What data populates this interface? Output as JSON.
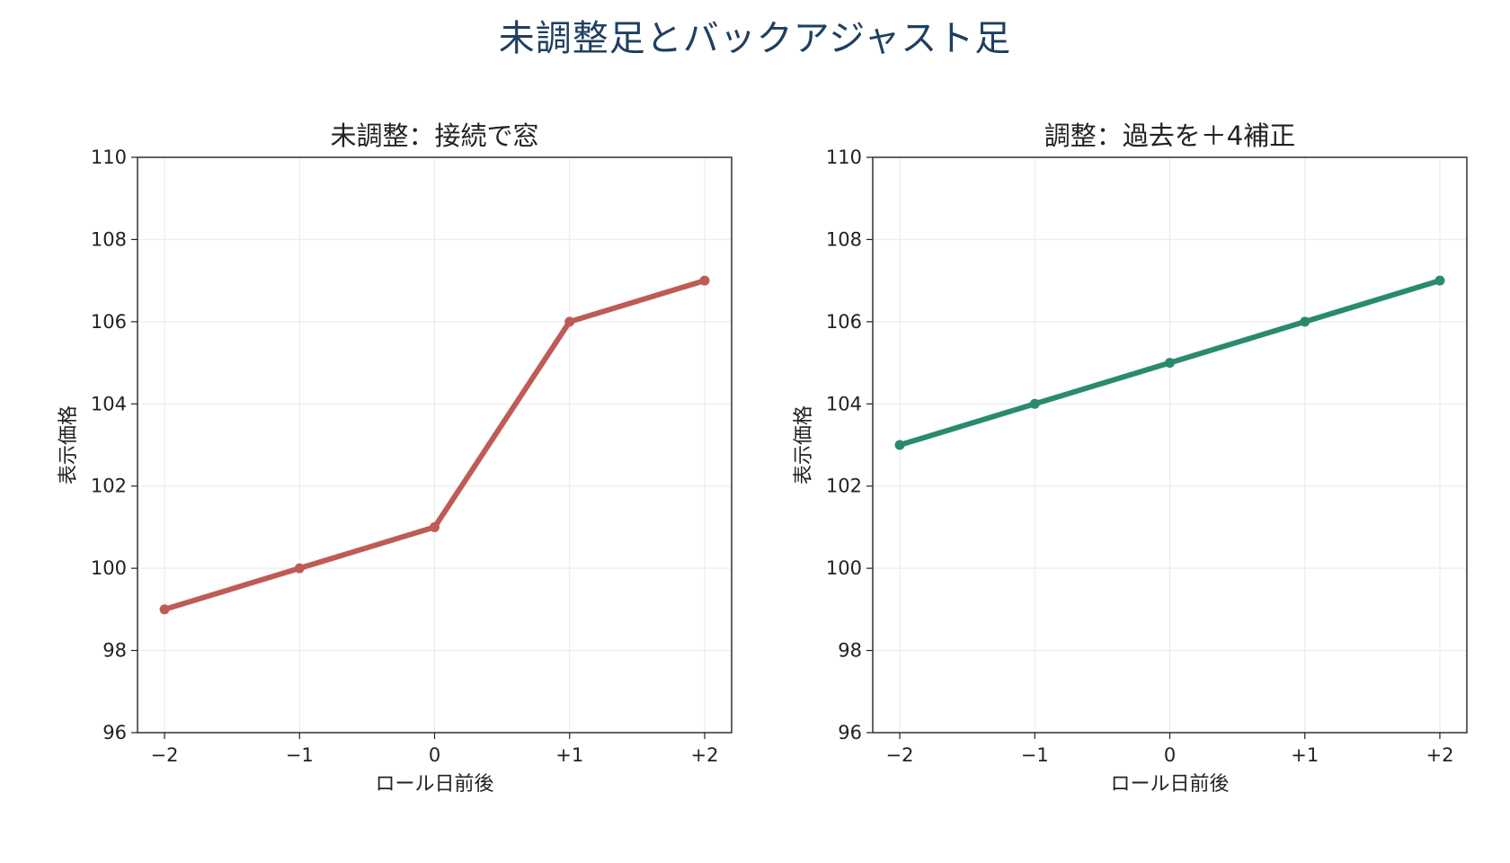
{
  "figure": {
    "suptitle": "未調整足とバックアジャスト足",
    "title_color": "#1f3f5f"
  },
  "chart_data": [
    {
      "type": "line",
      "title": "未調整：接続で窓",
      "xlabel": "ロール日前後",
      "ylabel": "表示価格",
      "categories": [
        "−2",
        "−1",
        "0",
        "+1",
        "+2"
      ],
      "x": [
        -2,
        -1,
        0,
        1,
        2
      ],
      "xlim": [
        -2.2,
        2.2
      ],
      "ylim": [
        96,
        110
      ],
      "yticks": [
        "96",
        "98",
        "100",
        "102",
        "104",
        "106",
        "108",
        "110"
      ],
      "grid": true,
      "series": [
        {
          "values": [
            99,
            100,
            101,
            106,
            107
          ],
          "color": "#bf5b55"
        }
      ]
    },
    {
      "type": "line",
      "title": "調整：過去を＋4補正",
      "xlabel": "ロール日前後",
      "ylabel": "表示価格",
      "categories": [
        "−2",
        "−1",
        "0",
        "+1",
        "+2"
      ],
      "x": [
        -2,
        -1,
        0,
        1,
        2
      ],
      "xlim": [
        -2.2,
        2.2
      ],
      "ylim": [
        96,
        110
      ],
      "yticks": [
        "96",
        "98",
        "100",
        "102",
        "104",
        "106",
        "108",
        "110"
      ],
      "grid": true,
      "series": [
        {
          "values": [
            103,
            104,
            105,
            106,
            107
          ],
          "color": "#2a8a70"
        }
      ]
    }
  ]
}
